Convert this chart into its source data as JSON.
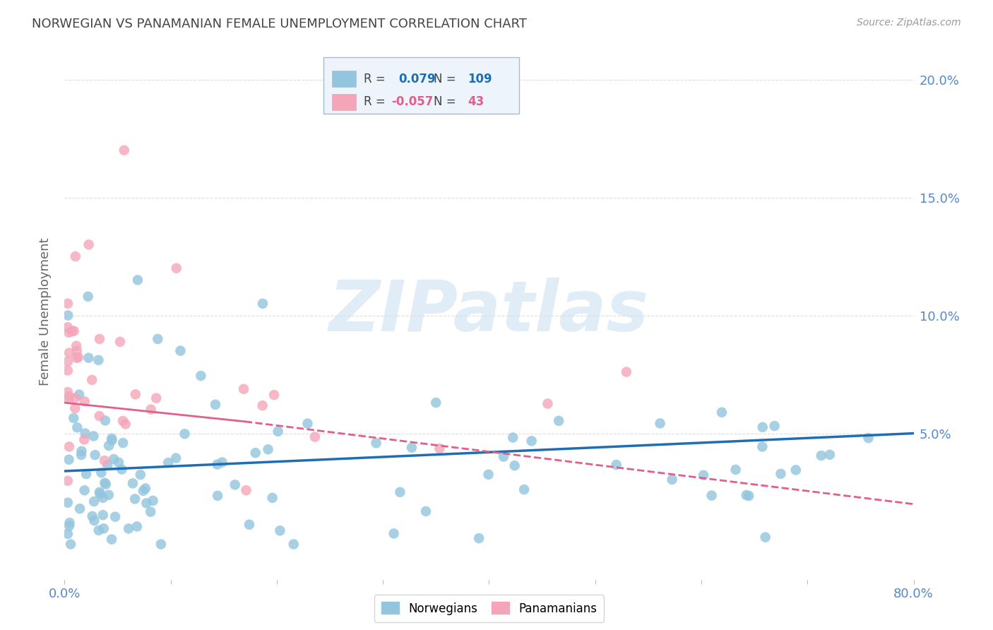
{
  "title": "NORWEGIAN VS PANAMANIAN FEMALE UNEMPLOYMENT CORRELATION CHART",
  "source": "Source: ZipAtlas.com",
  "ylabel": "Female Unemployment",
  "xlim": [
    0.0,
    0.8
  ],
  "ylim": [
    -0.012,
    0.215
  ],
  "ytick_vals": [
    0.05,
    0.1,
    0.15,
    0.2
  ],
  "ytick_labels": [
    "5.0%",
    "10.0%",
    "15.0%",
    "20.0%"
  ],
  "xtick_vals": [
    0.0,
    0.1,
    0.2,
    0.3,
    0.4,
    0.5,
    0.6,
    0.7,
    0.8
  ],
  "xtick_labels": [
    "0.0%",
    "",
    "",
    "",
    "",
    "",
    "",
    "",
    "80.0%"
  ],
  "norwegian_color": "#92c5de",
  "panamanian_color": "#f4a6b8",
  "norwegian_line_color": "#1f6eb5",
  "panamanian_line_color": "#e0608a",
  "r_norwegian": "0.079",
  "n_norwegian": "109",
  "r_panamanian": "-0.057",
  "n_panamanian": "43",
  "watermark": "ZIPatlas",
  "background_color": "#ffffff",
  "grid_color": "#dddddd",
  "title_color": "#444444",
  "axis_label_color": "#5588cc",
  "text_color_dark": "#444444",
  "legend_face": "#eef4fc",
  "legend_edge": "#aabbd0"
}
